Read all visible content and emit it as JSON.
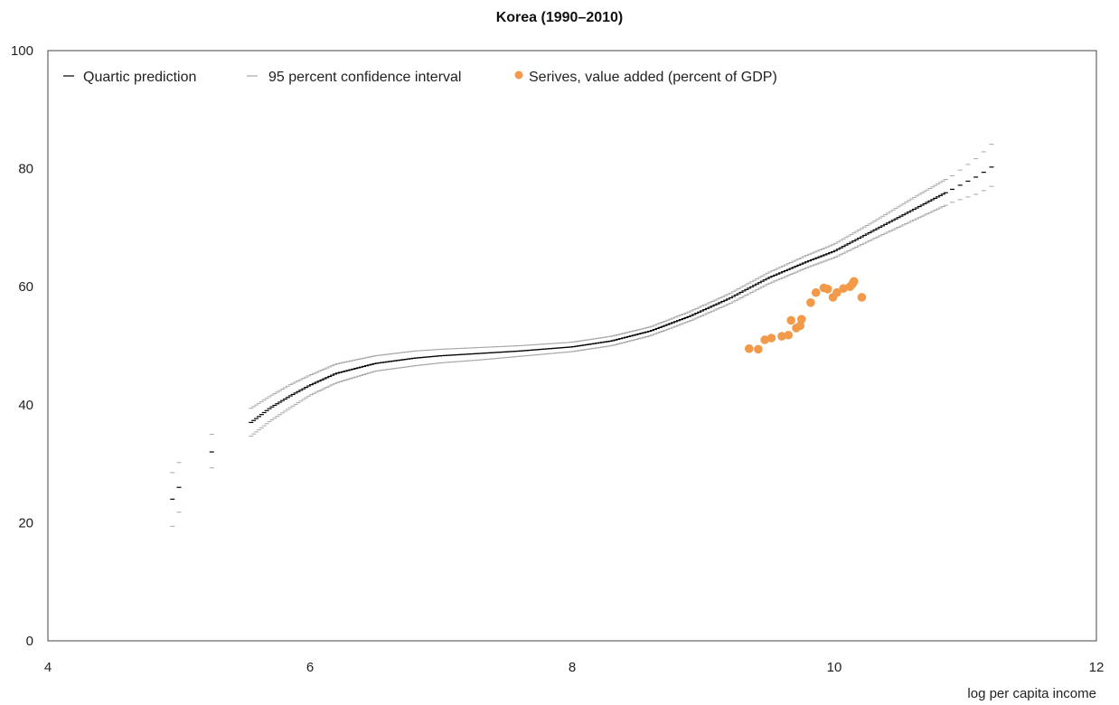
{
  "chart_data": {
    "type": "scatter",
    "title": "Korea (1990–2010)",
    "xlabel": "log per capita income",
    "ylabel": "",
    "xlim": [
      4,
      12
    ],
    "ylim": [
      0,
      100
    ],
    "xticks": [
      4,
      6,
      8,
      10,
      12
    ],
    "yticks": [
      0,
      20,
      40,
      60,
      80,
      100
    ],
    "xtick_labels": [
      "4",
      "6",
      "8",
      "10",
      "12"
    ],
    "ytick_labels": [
      "0",
      "20",
      "40",
      "60",
      "80",
      "100"
    ],
    "grid": false,
    "legend_position": "top",
    "colors": {
      "prediction": "#000000",
      "confidence": "#a6a6a6",
      "points": "#f39a4a",
      "frame": "#444444"
    },
    "series": [
      {
        "name": "Quartic prediction",
        "kind": "line",
        "x": [
          4.95,
          5.0,
          5.25,
          5.55,
          5.7,
          5.85,
          6.0,
          6.2,
          6.5,
          6.8,
          7.0,
          7.3,
          7.6,
          8.0,
          8.3,
          8.6,
          8.9,
          9.2,
          9.5,
          9.8,
          10.0,
          10.3,
          10.6,
          10.9,
          11.1,
          11.25
        ],
        "y": [
          24.0,
          26.0,
          32.0,
          37.0,
          39.5,
          41.5,
          43.3,
          45.3,
          47.0,
          47.9,
          48.3,
          48.7,
          49.1,
          49.8,
          50.8,
          52.5,
          55.0,
          58.0,
          61.5,
          64.3,
          66.0,
          69.5,
          73.0,
          76.5,
          78.8,
          81.0
        ]
      },
      {
        "name": "95 percent confidence interval",
        "kind": "band",
        "x": [
          4.95,
          5.0,
          5.25,
          5.55,
          5.7,
          5.85,
          6.0,
          6.2,
          6.5,
          6.8,
          7.0,
          7.3,
          7.6,
          8.0,
          8.3,
          8.6,
          8.9,
          9.2,
          9.5,
          9.8,
          10.0,
          10.3,
          10.6,
          10.9,
          11.1,
          11.25
        ],
        "upper": [
          28.5,
          30.2,
          35.0,
          39.4,
          41.5,
          43.4,
          45.0,
          46.9,
          48.3,
          49.1,
          49.4,
          49.7,
          50.0,
          50.6,
          51.6,
          53.2,
          55.8,
          58.8,
          62.4,
          65.4,
          67.2,
          71.0,
          75.0,
          78.8,
          82.0,
          85.2
        ],
        "lower": [
          19.4,
          21.8,
          29.3,
          34.7,
          37.3,
          39.5,
          41.6,
          43.7,
          45.7,
          46.6,
          47.1,
          47.6,
          48.2,
          49.0,
          50.0,
          51.7,
          54.2,
          57.1,
          60.5,
          63.3,
          64.9,
          68.1,
          71.2,
          74.3,
          75.8,
          77.6
        ]
      },
      {
        "name": "Serives, value added (percent of GDP)",
        "kind": "points",
        "x": [
          9.35,
          9.42,
          9.47,
          9.52,
          9.6,
          9.65,
          9.67,
          9.71,
          9.74,
          9.75,
          9.82,
          9.86,
          9.92,
          9.95,
          9.99,
          10.02,
          10.07,
          10.12,
          10.14,
          10.15,
          10.21
        ],
        "y": [
          49.5,
          49.4,
          51.0,
          51.3,
          51.6,
          51.8,
          54.3,
          53.0,
          53.4,
          54.5,
          57.3,
          59.0,
          59.8,
          59.6,
          58.2,
          59.0,
          59.7,
          60.0,
          60.5,
          60.9,
          58.2
        ]
      }
    ]
  }
}
